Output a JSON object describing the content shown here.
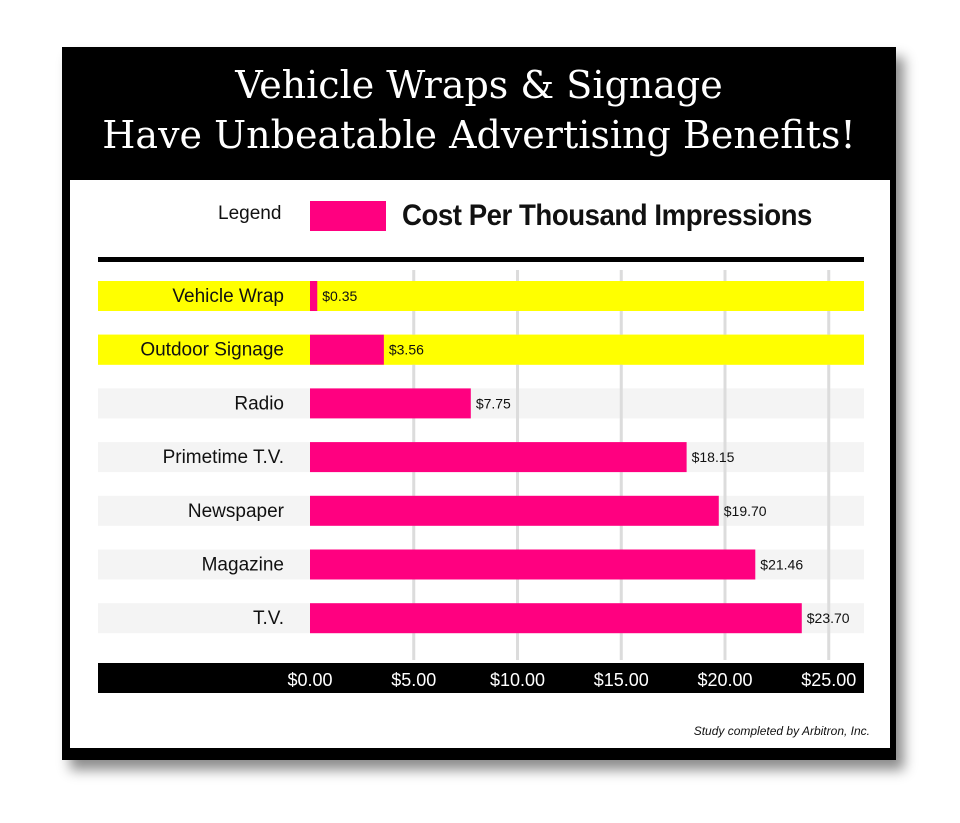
{
  "title": {
    "line1": "Vehicle Wraps & Signage",
    "line2": "Have Unbeatable Advertising Benefits!"
  },
  "legend": {
    "label": "Legend",
    "series_name": "Cost Per Thousand Impressions"
  },
  "footnote": "Study completed by Arbitron, Inc.",
  "colors": {
    "bar": "#ff0080",
    "highlight": "#ffff00",
    "row": "#f4f4f4",
    "grid": "#dcdcdc"
  },
  "chart_data": {
    "type": "bar",
    "orientation": "horizontal",
    "categories": [
      "Vehicle Wrap",
      "Outdoor Signage",
      "Radio",
      "Primetime T.V.",
      "Newspaper",
      "Magazine",
      "T.V."
    ],
    "series": [
      {
        "name": "Cost Per Thousand Impressions",
        "values": [
          0.35,
          3.56,
          7.75,
          18.15,
          19.7,
          21.46,
          23.7
        ]
      }
    ],
    "data_labels": [
      "$0.35",
      "$3.56",
      "$7.75",
      "$18.15",
      "$19.70",
      "$21.46",
      "$23.70"
    ],
    "highlighted": [
      "Vehicle Wrap",
      "Outdoor Signage"
    ],
    "xlim": [
      0,
      26.5
    ],
    "xticks": [
      0,
      5,
      10,
      15,
      20,
      25
    ],
    "xtick_labels": [
      "$0.00",
      "$5.00",
      "$10.00",
      "$15.00",
      "$20.00",
      "$25.00"
    ],
    "grid": true,
    "legend_position": "top"
  }
}
